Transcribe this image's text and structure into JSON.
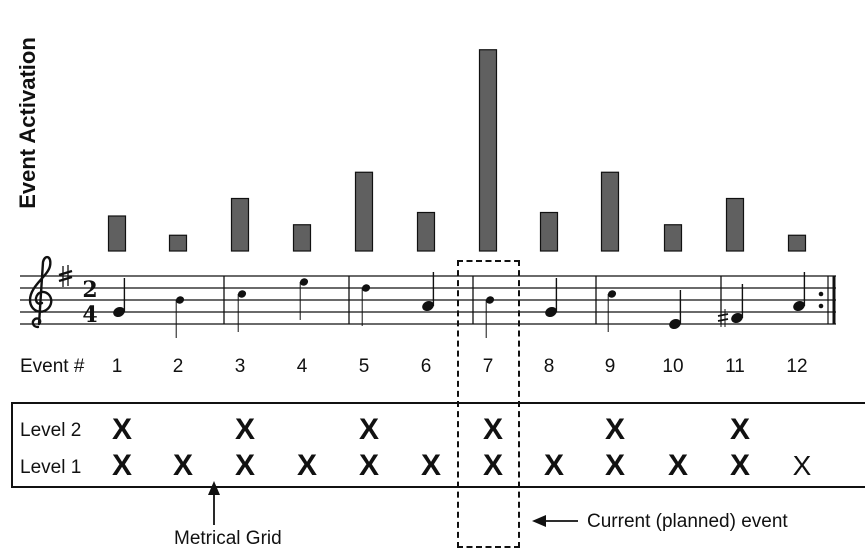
{
  "chart_data": {
    "type": "bar",
    "ylabel": "Event Activation",
    "categories": [
      "1",
      "2",
      "3",
      "4",
      "5",
      "6",
      "7",
      "8",
      "9",
      "10",
      "11",
      "12"
    ],
    "values": [
      2,
      0.9,
      3,
      1.5,
      4.5,
      2.2,
      11.5,
      2.2,
      4.5,
      1.5,
      3,
      0.9
    ]
  },
  "staff": {
    "time_signature": "2/4",
    "notes": [
      {
        "event": 1,
        "pitch": "G4",
        "value": "quarter"
      },
      {
        "event": 2,
        "pitch": "B4",
        "value": "eighth"
      },
      {
        "event": 3,
        "pitch": "C5",
        "value": "eighth"
      },
      {
        "event": 4,
        "pitch": "E5",
        "value": "eighth"
      },
      {
        "event": 5,
        "pitch": "D5",
        "value": "eighth"
      },
      {
        "event": 6,
        "pitch": "A4",
        "value": "quarter"
      },
      {
        "event": 7,
        "pitch": "B4",
        "value": "eighth"
      },
      {
        "event": 8,
        "pitch": "G4",
        "value": "quarter"
      },
      {
        "event": 9,
        "pitch": "C5",
        "value": "eighth"
      },
      {
        "event": 10,
        "pitch": "E4",
        "value": "quarter"
      },
      {
        "event": 11,
        "pitch": "F#4",
        "value": "quarter"
      },
      {
        "event": 12,
        "pitch": "A4",
        "value": "quarter"
      }
    ]
  },
  "events": {
    "label": "Event #",
    "numbers": [
      "1",
      "2",
      "3",
      "4",
      "5",
      "6",
      "7",
      "8",
      "9",
      "10",
      "11",
      "12"
    ]
  },
  "grid": {
    "level2_label": "Level 2",
    "level1_label": "Level 1",
    "mark": "X",
    "level2_events": [
      1,
      3,
      5,
      7,
      9,
      11
    ],
    "level1_events": [
      1,
      2,
      3,
      4,
      5,
      6,
      7,
      8,
      9,
      10,
      11,
      12
    ],
    "light_events": [
      12
    ]
  },
  "annotations": {
    "metrical_grid": "Metrical Grid",
    "current_event": "Current (planned) event"
  },
  "colors": {
    "bar_fill": "#606060",
    "ink": "#111111"
  }
}
